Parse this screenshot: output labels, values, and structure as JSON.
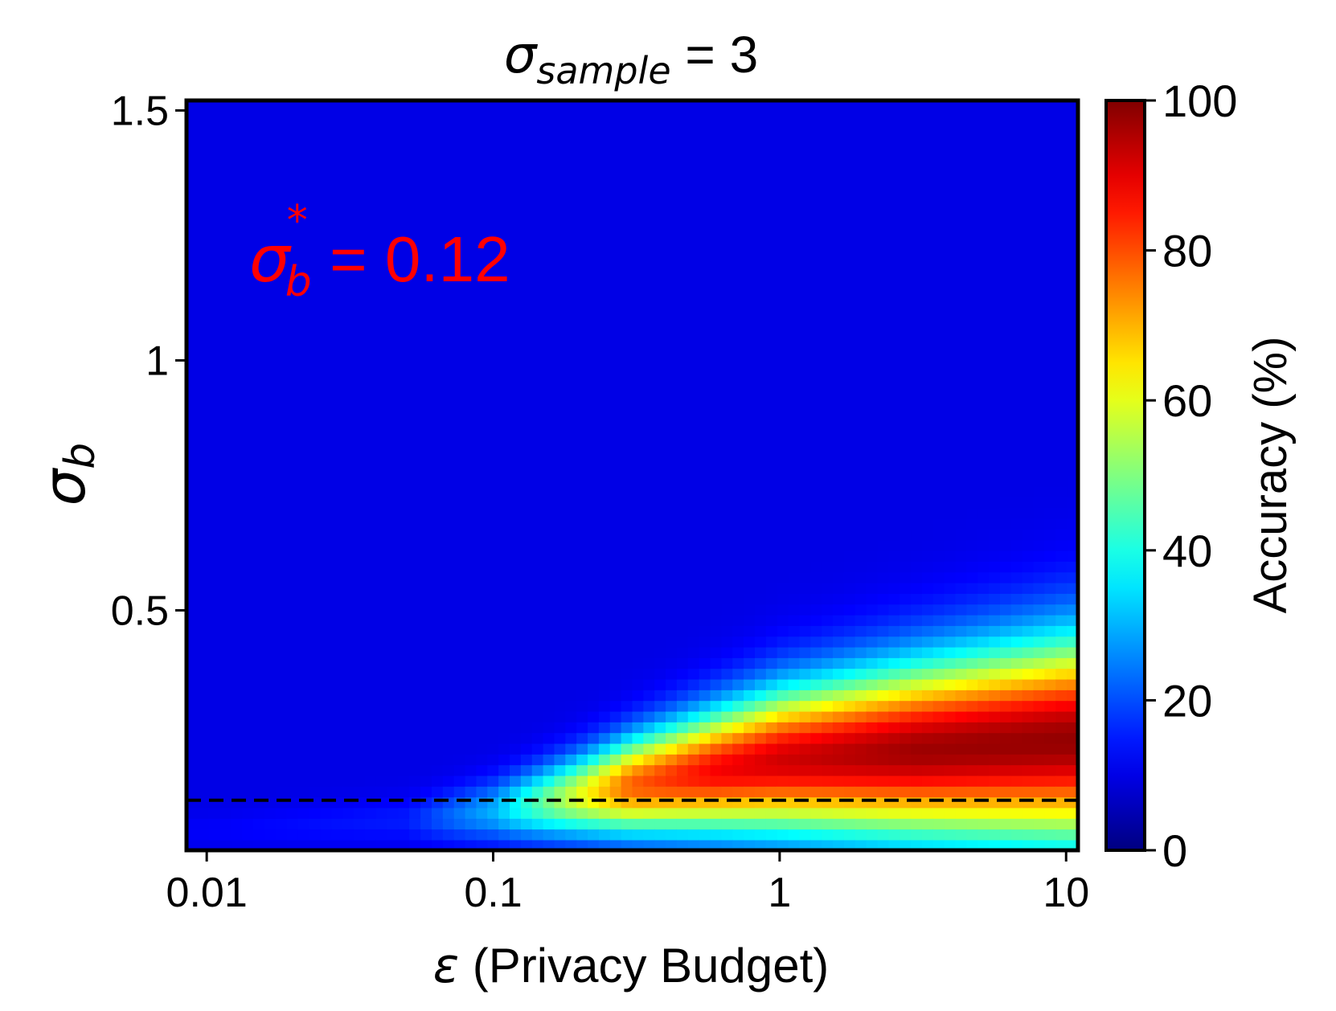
{
  "chart_data": {
    "type": "heatmap",
    "title": {
      "symbol": "σ",
      "subscript": "sample",
      "rest": " = 3"
    },
    "xlabel": {
      "symbol": "ε",
      "rest": " (Privacy Budget)"
    },
    "ylabel": {
      "symbol": "σ",
      "subscript": "b"
    },
    "x_scale": "log",
    "xlim": [
      0.0085,
      11
    ],
    "ylim": [
      0.02,
      1.52
    ],
    "x_ticks": [
      {
        "value": 0.01,
        "label": "0.01"
      },
      {
        "value": 0.1,
        "label": "0.1"
      },
      {
        "value": 1,
        "label": "1"
      },
      {
        "value": 10,
        "label": "10"
      }
    ],
    "y_ticks": [
      {
        "value": 0.5,
        "label": "0.5"
      },
      {
        "value": 1,
        "label": "1"
      },
      {
        "value": 1.5,
        "label": "1.5"
      }
    ],
    "colorbar": {
      "label": "Accuracy (%)",
      "range": [
        0,
        100
      ],
      "colormap": "jet",
      "ticks": [
        {
          "value": 0,
          "label": "0"
        },
        {
          "value": 20,
          "label": "20"
        },
        {
          "value": 40,
          "label": "40"
        },
        {
          "value": 60,
          "label": "60"
        },
        {
          "value": 80,
          "label": "80"
        },
        {
          "value": 100,
          "label": "100"
        }
      ]
    },
    "background_accuracy": 10,
    "high_accuracy_band": [
      {
        "epsilon": 0.01,
        "sigma_center": 0.06,
        "half_width": 0.035,
        "peak": 12
      },
      {
        "epsilon": 0.05,
        "sigma_center": 0.08,
        "half_width": 0.045,
        "peak": 15
      },
      {
        "epsilon": 0.1,
        "sigma_center": 0.1,
        "half_width": 0.06,
        "peak": 30
      },
      {
        "epsilon": 0.2,
        "sigma_center": 0.13,
        "half_width": 0.08,
        "peak": 60
      },
      {
        "epsilon": 0.3,
        "sigma_center": 0.15,
        "half_width": 0.095,
        "peak": 78
      },
      {
        "epsilon": 0.6,
        "sigma_center": 0.18,
        "half_width": 0.12,
        "peak": 88
      },
      {
        "epsilon": 1,
        "sigma_center": 0.2,
        "half_width": 0.14,
        "peak": 92
      },
      {
        "epsilon": 3,
        "sigma_center": 0.22,
        "half_width": 0.17,
        "peak": 97
      },
      {
        "epsilon": 10,
        "sigma_center": 0.24,
        "half_width": 0.2,
        "peak": 98
      }
    ],
    "reference_line": {
      "style": "dashed",
      "color": "#000000",
      "y": 0.12
    },
    "annotation": {
      "symbol": "σ",
      "subscript": "b",
      "superscript": "*",
      "rest": " = 0.12",
      "color": "#ff0000"
    }
  }
}
